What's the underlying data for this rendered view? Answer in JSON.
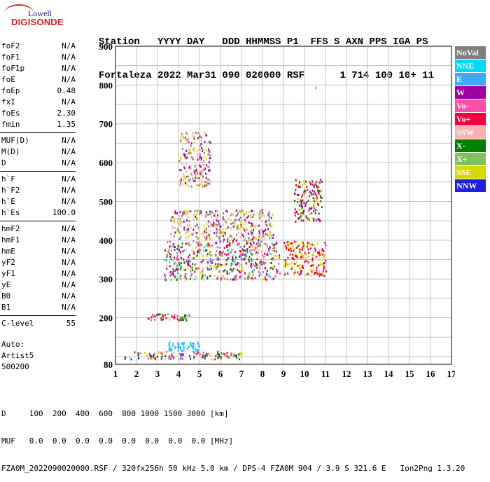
{
  "logo": {
    "line1": "Lowell",
    "line2": "DIGISONDE"
  },
  "header": {
    "row1": "Station   YYYY DAY   DDD HHMMSS P1  FFS S AXN PPS IGA PS",
    "row2": "Fortaleza 2022 Mar31 090 020000 RSF      1 714 100 10+ 11"
  },
  "params": [
    [
      {
        "name": "foF2",
        "value": "N/A"
      },
      {
        "name": "foF1",
        "value": "N/A"
      },
      {
        "name": "foF1p",
        "value": "N/A"
      },
      {
        "name": "foE",
        "value": "N/A"
      },
      {
        "name": "foEp",
        "value": "0.48"
      },
      {
        "name": "fxI",
        "value": "N/A"
      },
      {
        "name": "foEs",
        "value": "2.30"
      },
      {
        "name": "fmin",
        "value": "1.35"
      }
    ],
    [
      {
        "name": "MUF(D)",
        "value": "N/A"
      },
      {
        "name": "M(D)",
        "value": "N/A"
      },
      {
        "name": "D",
        "value": "N/A"
      }
    ],
    [
      {
        "name": "h`F",
        "value": "N/A"
      },
      {
        "name": "h`F2",
        "value": "N/A"
      },
      {
        "name": "h`E",
        "value": "N/A"
      },
      {
        "name": "h`Es",
        "value": "100.0"
      }
    ],
    [
      {
        "name": "hmF2",
        "value": "N/A"
      },
      {
        "name": "hmF1",
        "value": "N/A"
      },
      {
        "name": "hmE",
        "value": "N/A"
      },
      {
        "name": "yF2",
        "value": "N/A"
      },
      {
        "name": "yF1",
        "value": "N/A"
      },
      {
        "name": "yE",
        "value": "N/A"
      },
      {
        "name": "B0",
        "value": "N/A"
      },
      {
        "name": "B1",
        "value": "N/A"
      }
    ],
    [
      {
        "name": "C-level",
        "value": "55"
      }
    ]
  ],
  "auto": {
    "line1": "Auto:",
    "line2": "Artist5",
    "line3": "500200"
  },
  "legend": [
    {
      "label": "NoVal",
      "color": "#808080"
    },
    {
      "label": "NNE",
      "color": "#00d8f8"
    },
    {
      "label": "E",
      "color": "#40a8f8"
    },
    {
      "label": "W",
      "color": "#a000a0"
    },
    {
      "label": "Vo-",
      "color": "#f850a8"
    },
    {
      "label": "Vo+",
      "color": "#f00040"
    },
    {
      "label": "SSW",
      "color": "#f8b0b0"
    },
    {
      "label": "X-",
      "color": "#008000"
    },
    {
      "label": "X+",
      "color": "#80c060"
    },
    {
      "label": "SSE",
      "color": "#d8d800"
    },
    {
      "label": "NNW",
      "color": "#2020e0"
    }
  ],
  "chart_data": {
    "type": "scatter",
    "title": "",
    "xlabel": "",
    "ylabel": "",
    "xlim": [
      1,
      17
    ],
    "ylim": [
      80,
      900
    ],
    "x_ticks": [
      "1",
      "2",
      "3",
      "4",
      "5",
      "6",
      "7",
      "8",
      "9",
      "10",
      "11",
      "12",
      "13",
      "14",
      "15",
      "16",
      "17"
    ],
    "y_ticks": [
      "80",
      "200",
      "300",
      "400",
      "500",
      "600",
      "700",
      "800",
      "900"
    ],
    "y_tick_values": [
      80,
      200,
      300,
      400,
      500,
      600,
      700,
      800,
      900
    ],
    "grid": true,
    "clusters": [
      {
        "name": "Es-low",
        "x": [
          1.4,
          7.0
        ],
        "y": [
          95,
          115
        ],
        "colors": [
          "#f00040",
          "#f850a8",
          "#008000",
          "#d8d800",
          "#2020e0"
        ]
      },
      {
        "name": "Es-mid",
        "x": [
          3.5,
          5.0
        ],
        "y": [
          115,
          140
        ],
        "colors": [
          "#40a8f8",
          "#00d8f8"
        ]
      },
      {
        "name": "Es-200",
        "x": [
          2.5,
          4.5
        ],
        "y": [
          195,
          212
        ],
        "colors": [
          "#f850a8",
          "#f00040",
          "#008000",
          "#80c060"
        ]
      },
      {
        "name": "F-main",
        "x": [
          3.3,
          8.8
        ],
        "y": [
          300,
          400
        ],
        "colors": [
          "#d8d800",
          "#40a8f8",
          "#a000a0",
          "#f00040",
          "#f850a8",
          "#008000"
        ]
      },
      {
        "name": "F-upper",
        "x": [
          3.6,
          8.5
        ],
        "y": [
          400,
          480
        ],
        "colors": [
          "#a000a0",
          "#f8b0b0",
          "#808080",
          "#d8d800"
        ]
      },
      {
        "name": "F-high",
        "x": [
          4.0,
          5.5
        ],
        "y": [
          540,
          680
        ],
        "colors": [
          "#f8b0b0",
          "#d8d800",
          "#a000a0",
          "#808080"
        ]
      },
      {
        "name": "F-right",
        "x": [
          9.5,
          10.8
        ],
        "y": [
          450,
          560
        ],
        "colors": [
          "#f00040",
          "#a000a0",
          "#d8d800",
          "#008000"
        ]
      },
      {
        "name": "F-far",
        "x": [
          9.0,
          11.0
        ],
        "y": [
          310,
          400
        ],
        "colors": [
          "#d8d800",
          "#f00040"
        ]
      }
    ],
    "outliers": [
      {
        "x": 10.5,
        "y": 795,
        "color": "#00d8f8"
      }
    ]
  },
  "footer": {
    "line1": "D     100  200  400  600  800 1000 1500 3000 [km]",
    "line2": "MUF   0.0  0.0  0.0  0.0  0.0  0.0  0.0  0.0 [MHz]",
    "line3": "FZA0M_2022090020000.RSF / 320fx256h 50 kHz 5.0 km / DPS-4 FZA0M 904 / 3.9 S 321.6 E   Ion2Png 1.3.20"
  }
}
